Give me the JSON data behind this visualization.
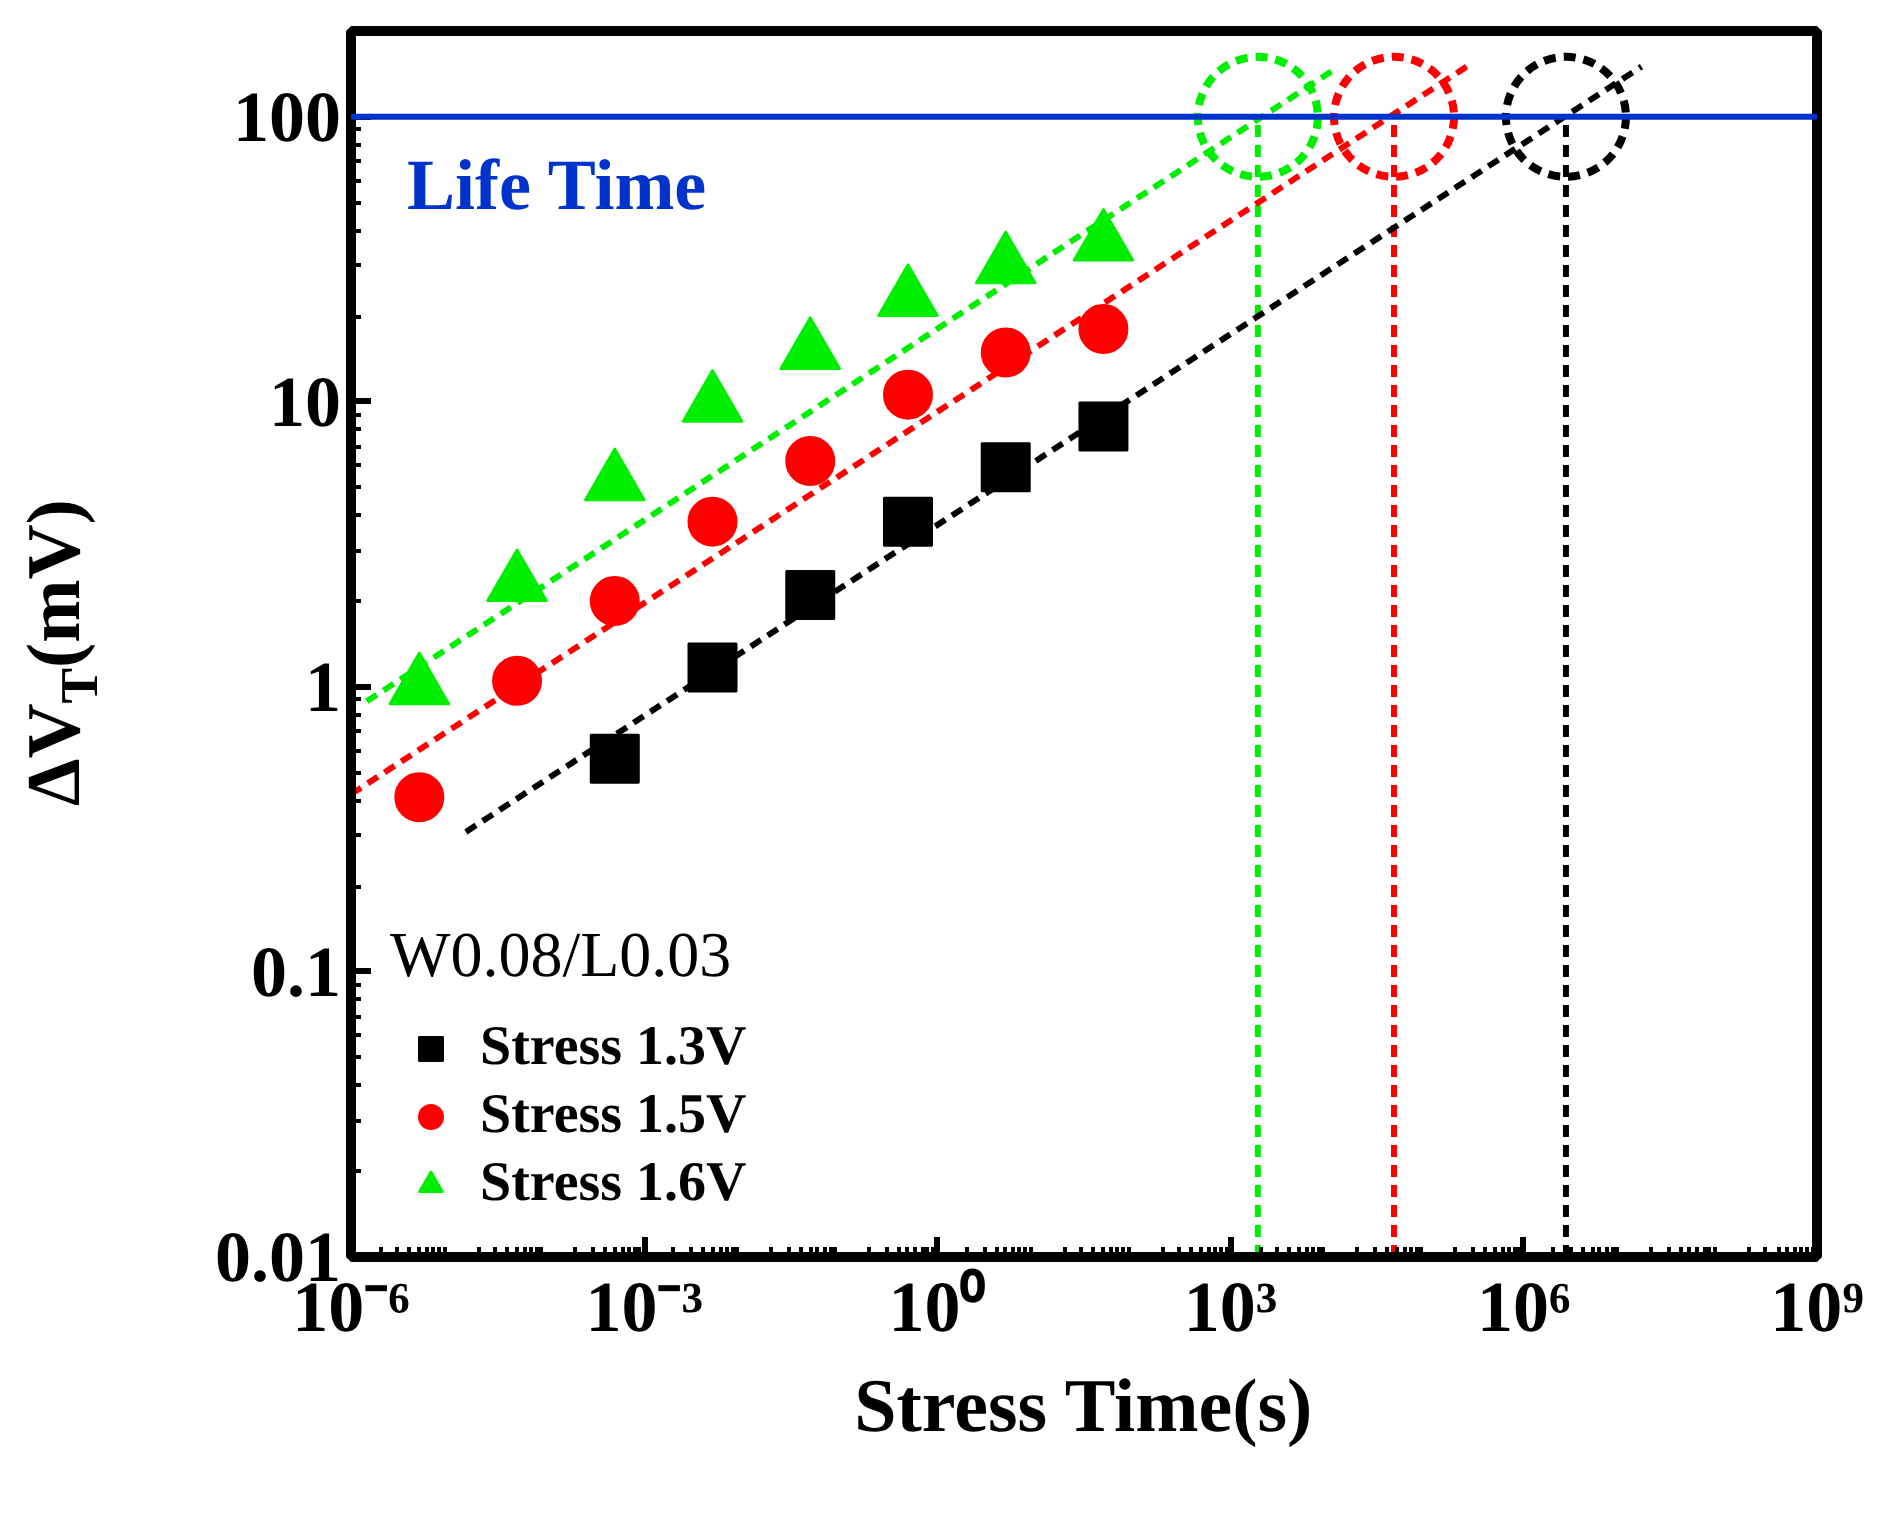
{
  "chart_data": {
    "type": "scatter",
    "xlabel": "Stress Time(s)",
    "ylabel": "ΔV$_{T}$(mV)",
    "legend_title": "W0.08/L0.03",
    "log": "xy",
    "xlim": [
      1e-06,
      1000000000.0
    ],
    "ylim": [
      0.01,
      200
    ],
    "xticks": [
      {
        "value": 1e-06,
        "label": "10⁻⁶"
      },
      {
        "value": 0.001,
        "label": "10⁻³"
      },
      {
        "value": 1,
        "label": "10⁰"
      },
      {
        "value": 1000,
        "label": "10³"
      },
      {
        "value": 1000000,
        "label": "10⁶"
      },
      {
        "value": 1000000000,
        "label": "10⁹"
      }
    ],
    "yticks": [
      0.01,
      0.1,
      1,
      10,
      100
    ],
    "grid": false,
    "legend": "bottom left",
    "series": [
      {
        "name": "Stress 1.3V",
        "marker": "square",
        "color": "#000000",
        "x": [
          0.0005,
          0.005,
          0.05,
          0.5,
          5,
          50
        ],
        "values": [
          0.56,
          1.17,
          2.1,
          3.8,
          5.9,
          8.2
        ]
      },
      {
        "name": "Stress 1.5V",
        "marker": "circle",
        "color": "#ff0000",
        "x": [
          5e-06,
          5e-05,
          0.0005,
          0.005,
          0.05,
          0.5,
          5,
          50
        ],
        "values": [
          0.41,
          1.05,
          2.0,
          3.8,
          6.2,
          10.6,
          14.9,
          18
        ]
      },
      {
        "name": "Stress 1.6V",
        "marker": "triangle",
        "color": "#00ee00",
        "x": [
          5e-06,
          5e-05,
          0.0005,
          0.005,
          0.05,
          0.5,
          5,
          50
        ],
        "values": [
          1.0,
          2.3,
          5.2,
          9.8,
          15,
          23,
          30,
          36
        ]
      },
      {
        "type": "line",
        "line_style": "dashed",
        "color": "#000000",
        "x": [
          1.5e-05,
          16000000.0
        ],
        "values": [
          0.31,
          150
        ]
      },
      {
        "type": "line",
        "line_style": "dashed",
        "color": "#ff0000",
        "x": [
          1e-06,
          260000.0
        ],
        "values": [
          0.42,
          150
        ]
      },
      {
        "type": "line",
        "line_style": "dashed",
        "color": "#00ee00",
        "x": [
          1.45e-06,
          11000.0
        ],
        "values": [
          0.89,
          145
        ]
      },
      {
        "type": "scatter",
        "marker": "circle",
        "line_style": "dashed",
        "color": "#000000",
        "x": [
          2700000.0
        ],
        "values": [
          100
        ]
      },
      {
        "type": "scatter",
        "marker": "circle",
        "line_style": "dashed",
        "color": "#ff0000",
        "x": [
          47000.0
        ],
        "values": [
          100
        ]
      },
      {
        "type": "scatter",
        "marker": "circle",
        "line_style": "dashed",
        "color": "#00ee00",
        "x": [
          1900
        ],
        "values": [
          100
        ]
      }
    ],
    "ref_lines": [
      {
        "axis": "y",
        "value": 100,
        "label": "Life Time",
        "color": "#0033cc",
        "line_style": "solid"
      },
      {
        "axis": "x",
        "value": 1900,
        "color": "#00ee00",
        "line_style": "dashed"
      },
      {
        "axis": "x",
        "value": 47000,
        "color": "#ff0000",
        "line_style": "dashed"
      },
      {
        "axis": "x",
        "value": 2700000,
        "color": "#000000",
        "line_style": "dashed"
      }
    ]
  }
}
